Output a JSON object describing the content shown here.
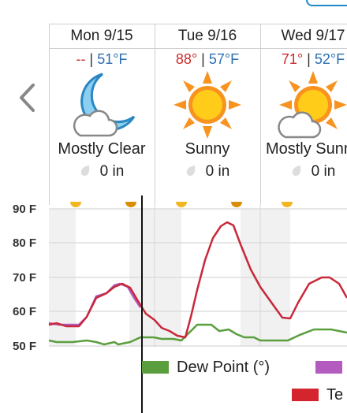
{
  "nav": {
    "back_icon": "chevron-left-icon"
  },
  "days": [
    {
      "name": "Mon 9/15",
      "high": "--",
      "sep": " | ",
      "low": "51°F",
      "condition": "Mostly Clear",
      "icon": "moon-cloud-icon",
      "precip": "0 in"
    },
    {
      "name": "Tue 9/16",
      "high": "88°",
      "sep": " | ",
      "low": "57°F",
      "condition": "Sunny",
      "icon": "sun-icon",
      "precip": "0 in"
    },
    {
      "name": "Wed 9/17",
      "high": "71°",
      "sep": " | ",
      "low": "52°F",
      "condition": "Mostly Sunny",
      "icon": "sun-cloud-icon",
      "precip": "0 in"
    }
  ],
  "chart": {
    "y_labels": [
      "90 F",
      "80 F",
      "70 F",
      "60 F",
      "50 F"
    ]
  },
  "legend": [
    {
      "label": "Dew Point (°)",
      "color": "#5a9e3e"
    },
    {
      "label": "",
      "color": "#b35bbf"
    },
    {
      "label": "Te",
      "color": "#d4252f"
    }
  ],
  "colors": {
    "temperature": "#c8283a",
    "dew_point": "#5a9e3e",
    "feels_like": "#b35bbf",
    "sun": "#f7931e",
    "moon": "#8ccff0"
  }
}
